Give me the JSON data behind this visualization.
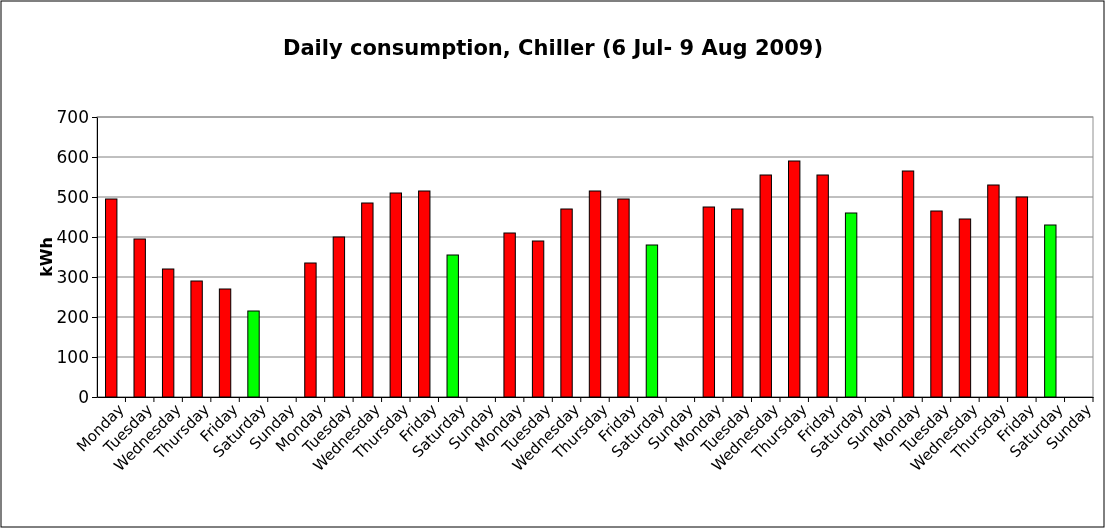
{
  "chart_data": {
    "type": "bar",
    "title": "Daily consumption, Chiller (6 Jul- 9 Aug 2009)",
    "ylabel": "kWh",
    "categories": [
      "Monday",
      "Tuesday",
      "Wednesday",
      "Thursday",
      "Friday",
      "Saturday",
      "Sunday",
      "Monday",
      "Tuesday",
      "Wednesday",
      "Thursday",
      "Friday",
      "Saturday",
      "Sunday",
      "Monday",
      "Tuesday",
      "Wednesday",
      "Thursday",
      "Friday",
      "Saturday",
      "Sunday",
      "Monday",
      "Tuesday",
      "Wednesday",
      "Thursday",
      "Friday",
      "Saturday",
      "Sunday",
      "Monday",
      "Tuesday",
      "Wednesday",
      "Thursday",
      "Friday",
      "Saturday",
      "Sunday"
    ],
    "values": [
      495,
      395,
      320,
      290,
      270,
      215,
      null,
      335,
      400,
      485,
      510,
      515,
      355,
      null,
      410,
      390,
      470,
      515,
      495,
      380,
      null,
      475,
      470,
      555,
      590,
      555,
      460,
      null,
      565,
      465,
      445,
      530,
      500,
      430,
      null
    ],
    "colors": [
      "#ff0000",
      "#ff0000",
      "#ff0000",
      "#ff0000",
      "#ff0000",
      "#00ff00",
      "#ff0000",
      "#ff0000",
      "#ff0000",
      "#ff0000",
      "#ff0000",
      "#ff0000",
      "#00ff00",
      "#ff0000",
      "#ff0000",
      "#ff0000",
      "#ff0000",
      "#ff0000",
      "#ff0000",
      "#00ff00",
      "#ff0000",
      "#ff0000",
      "#ff0000",
      "#ff0000",
      "#ff0000",
      "#ff0000",
      "#00ff00",
      "#ff0000",
      "#ff0000",
      "#ff0000",
      "#ff0000",
      "#ff0000",
      "#ff0000",
      "#00ff00",
      "#ff0000"
    ],
    "ylim": [
      0,
      700
    ],
    "yticks": [
      0,
      100,
      200,
      300,
      400,
      500,
      600,
      700
    ],
    "grid": "y"
  }
}
